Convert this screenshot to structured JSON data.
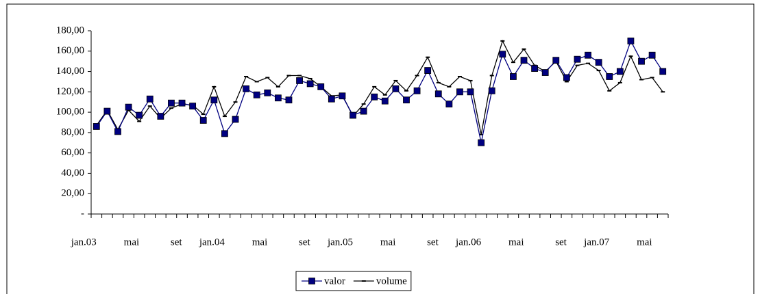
{
  "chart_data": {
    "type": "line",
    "categories": [
      "jan.03",
      null,
      null,
      null,
      "mai",
      null,
      null,
      null,
      "set",
      null,
      null,
      null,
      "jan.04",
      null,
      null,
      null,
      "mai",
      null,
      null,
      null,
      "set",
      null,
      null,
      null,
      "jan.05",
      null,
      null,
      null,
      "mai",
      null,
      null,
      null,
      "set",
      null,
      null,
      null,
      "jan.06",
      null,
      null,
      null,
      "mai",
      null,
      null,
      null,
      "set",
      null,
      null,
      null,
      "jan.07",
      null,
      null,
      null,
      "mai",
      null
    ],
    "series": [
      {
        "name": "valor",
        "color": "#000080",
        "marker": "square",
        "values": [
          86,
          101,
          81,
          105,
          97,
          113,
          96,
          109,
          109,
          106,
          92,
          112,
          79,
          93,
          123,
          117,
          119,
          114,
          112,
          131,
          128,
          125,
          113,
          116,
          97,
          101,
          115,
          111,
          123,
          112,
          121,
          141,
          118,
          108,
          120,
          120,
          70,
          121,
          157,
          135,
          151,
          143,
          139,
          151,
          134,
          152,
          156,
          149,
          135,
          140,
          170,
          150,
          156,
          140
        ]
      },
      {
        "name": "volume",
        "color": "#000000",
        "marker": "dash",
        "values": [
          87,
          102,
          83,
          102,
          91,
          106,
          94,
          104,
          108,
          107,
          98,
          125,
          96,
          110,
          135,
          130,
          134,
          125,
          136,
          136,
          133,
          125,
          116,
          117,
          96,
          108,
          125,
          117,
          131,
          121,
          136,
          154,
          129,
          125,
          135,
          131,
          78,
          136,
          170,
          149,
          162,
          146,
          140,
          150,
          130,
          146,
          148,
          141,
          121,
          129,
          155,
          132,
          134,
          120
        ]
      }
    ],
    "ylim": [
      0,
      180
    ],
    "yticks": [
      {
        "value": 0,
        "label": "-"
      },
      {
        "value": 20,
        "label": "20,00"
      },
      {
        "value": 40,
        "label": "40,00"
      },
      {
        "value": 60,
        "label": "60,00"
      },
      {
        "value": 80,
        "label": "80,00"
      },
      {
        "value": 100,
        "label": "100,00"
      },
      {
        "value": 120,
        "label": "120,00"
      },
      {
        "value": 140,
        "label": "140,00"
      },
      {
        "value": 160,
        "label": "160,00"
      },
      {
        "value": 180,
        "label": "180,00"
      }
    ],
    "grid": false,
    "legend": "bottom"
  }
}
